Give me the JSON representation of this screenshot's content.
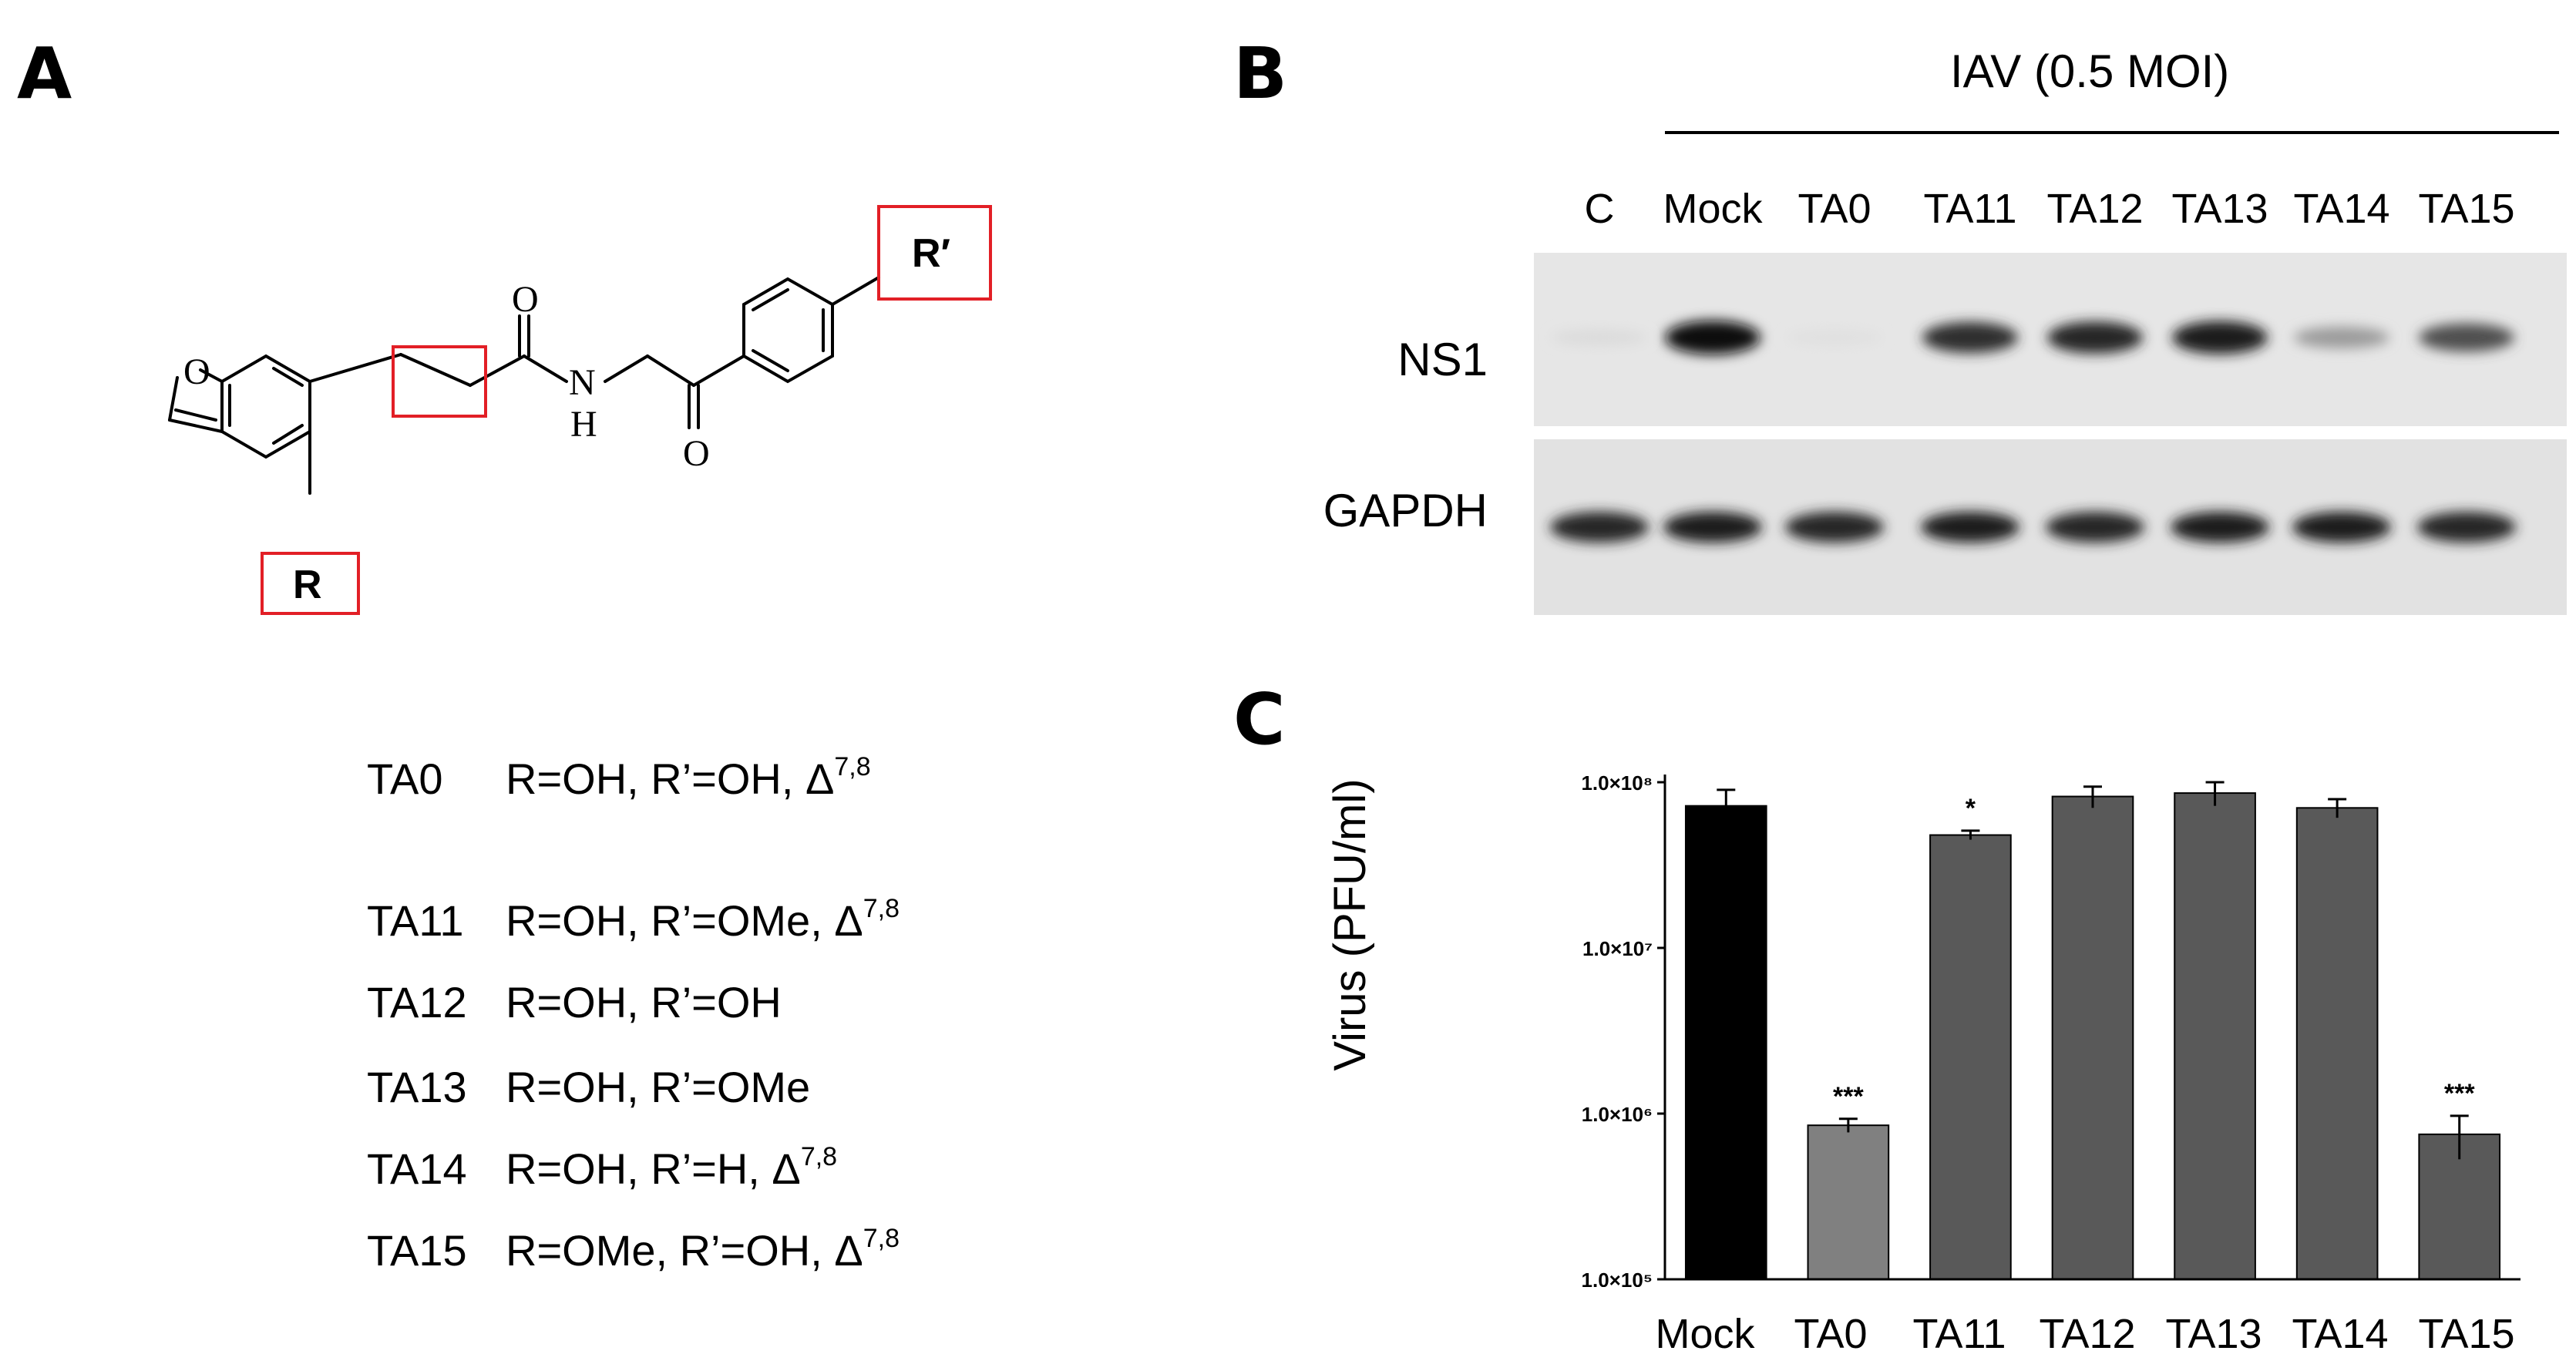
{
  "panels": {
    "a": "A",
    "b": "B",
    "c": "C"
  },
  "structure": {
    "atoms": {
      "o_ring": "O",
      "o_amide": "O",
      "n_amide": "N",
      "h_amide": "H",
      "o_ketone": "O"
    },
    "labels": {
      "r": "R",
      "r_prime": "R′"
    },
    "box_color": "#e21f26"
  },
  "compounds": [
    {
      "name": "TA0",
      "subst": "R=OH, R’=OH, Δ",
      "sup": "7,8"
    },
    {
      "name": "TA11",
      "subst": "R=OH, R’=OMe, Δ",
      "sup": "7,8"
    },
    {
      "name": "TA12",
      "subst": "R=OH, R’=OH",
      "sup": ""
    },
    {
      "name": "TA13",
      "subst": "R=OH, R’=OMe",
      "sup": ""
    },
    {
      "name": "TA14",
      "subst": "R=OH, R’=H, Δ",
      "sup": "7,8"
    },
    {
      "name": "TA15",
      "subst": "R=OMe, R’=OH, Δ",
      "sup": "7,8"
    }
  ],
  "blot": {
    "header": "IAV (0.5 MOI)",
    "lanes": [
      "C",
      "Mock",
      "TA0",
      "TA11",
      "TA12",
      "TA13",
      "TA14",
      "TA15"
    ],
    "rows": [
      "NS1",
      "GAPDH"
    ],
    "ns1_intensity": [
      0.05,
      1.0,
      0.03,
      0.85,
      0.9,
      0.95,
      0.35,
      0.7
    ],
    "gapdh_intensity": [
      0.9,
      0.95,
      0.9,
      0.95,
      0.9,
      0.95,
      0.95,
      0.9
    ]
  },
  "chart_data": {
    "type": "bar",
    "ylabel": "Virus (PFU/ml)",
    "yscale": "log",
    "ylim": [
      100000,
      100000000
    ],
    "yticks": [
      "1.0×10⁸",
      "1.0×10⁷",
      "1.0×10⁶",
      "1.0×10⁵"
    ],
    "categories": [
      "Mock",
      "TA0",
      "TA11",
      "TA12",
      "TA13",
      "TA14",
      "TA15"
    ],
    "values": [
      72000000,
      850000,
      48000000,
      82000000,
      86000000,
      70000000,
      750000
    ],
    "errors": [
      18000000,
      80000,
      3000000,
      12000000,
      14000000,
      9000000,
      220000
    ],
    "significance": [
      "",
      "***",
      "*",
      "",
      "",
      "",
      "***"
    ],
    "colors": [
      "#000000",
      "#808080",
      "#595959",
      "#595959",
      "#595959",
      "#595959",
      "#595959"
    ]
  }
}
